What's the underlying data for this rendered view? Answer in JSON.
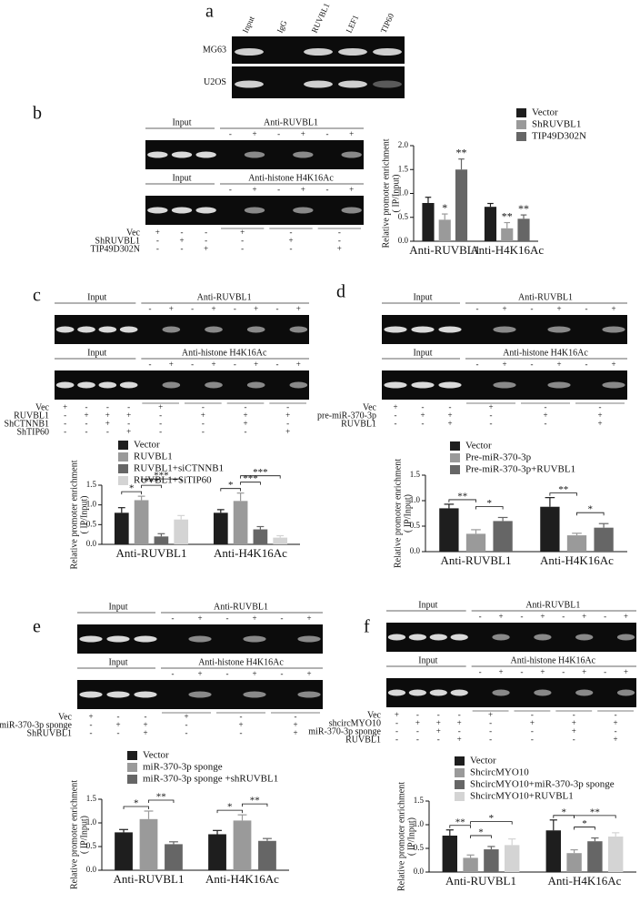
{
  "panels": [
    {
      "label": "a",
      "lanes": [
        "Input",
        "IgG",
        "RUVBL1",
        "LEF1",
        "TIP60"
      ],
      "rows": [
        "MG63",
        "U2OS"
      ]
    },
    {
      "label": "b",
      "gels": [
        {
          "input": "Input",
          "ip": "Anti-RUVBL1",
          "signs": [
            "-",
            "+",
            "-",
            "+",
            "-",
            "+"
          ]
        },
        {
          "input": "Input",
          "ip": "Anti-histone H4K16Ac",
          "signs": [
            "-",
            "+",
            "-",
            "+",
            "-",
            "+"
          ]
        }
      ],
      "conditions": [
        {
          "name": "Vec",
          "marks": [
            "+",
            "-",
            "-",
            "+",
            "-",
            "-"
          ]
        },
        {
          "name": "ShRUVBL1",
          "marks": [
            "-",
            "+",
            "-",
            "-",
            "+",
            "-"
          ]
        },
        {
          "name": "TIP49D302N",
          "marks": [
            "-",
            "-",
            "+",
            "-",
            "-",
            "+"
          ]
        }
      ]
    },
    {
      "label": "c",
      "gels": [
        {
          "input": "Input",
          "ip": "Anti-RUVBL1",
          "signs": [
            "-",
            "+",
            "-",
            "+",
            "-",
            "+",
            "-",
            "+"
          ]
        },
        {
          "input": "Input",
          "ip": "Anti-histone H4K16Ac",
          "signs": [
            "-",
            "+",
            "-",
            "+",
            "-",
            "+",
            "-",
            "+"
          ]
        }
      ],
      "conditions": [
        {
          "name": "Vec",
          "marks": [
            "+",
            "-",
            "-",
            "-",
            "+",
            "-",
            "-",
            "-"
          ]
        },
        {
          "name": "RUVBL1",
          "marks": [
            "-",
            "+",
            "+",
            "+",
            "-",
            "+",
            "+",
            "+"
          ]
        },
        {
          "name": "ShCTNNB1",
          "marks": [
            "-",
            "-",
            "+",
            "-",
            "-",
            "-",
            "+",
            "-"
          ]
        },
        {
          "name": "ShTIP60",
          "marks": [
            "-",
            "-",
            "-",
            "+",
            "-",
            "-",
            "-",
            "+"
          ]
        }
      ]
    },
    {
      "label": "d",
      "gels": [
        {
          "input": "Input",
          "ip": "Anti-RUVBL1",
          "signs": [
            "-",
            "+",
            "-",
            "+",
            "-",
            "+"
          ]
        },
        {
          "input": "Input",
          "ip": "Anti-histone H4K16Ac",
          "signs": [
            "-",
            "+",
            "-",
            "+",
            "-",
            "+"
          ]
        }
      ],
      "conditions": [
        {
          "name": "Vec",
          "marks": [
            "+",
            "-",
            "-",
            "+",
            "-",
            "-"
          ]
        },
        {
          "name": "pre-miR-370-3p",
          "marks": [
            "-",
            "+",
            "+",
            "-",
            "+",
            "+"
          ]
        },
        {
          "name": "RUVBL1",
          "marks": [
            "-",
            "-",
            "+",
            "-",
            "-",
            "+"
          ]
        }
      ]
    },
    {
      "label": "e",
      "gels": [
        {
          "input": "Input",
          "ip": "Anti-RUVBL1",
          "signs": [
            "-",
            "+",
            "-",
            "+",
            "-",
            "+"
          ]
        },
        {
          "input": "Input",
          "ip": "Anti-histone H4K16Ac",
          "signs": [
            "-",
            "+",
            "-",
            "+",
            "-",
            "+"
          ]
        }
      ],
      "conditions": [
        {
          "name": "Vec",
          "marks": [
            "+",
            "-",
            "-",
            "+",
            "-",
            "-"
          ]
        },
        {
          "name": "miR-370-3p sponge",
          "marks": [
            "-",
            "+",
            "+",
            "-",
            "+",
            "+"
          ]
        },
        {
          "name": "ShRUVBL1",
          "marks": [
            "-",
            "-",
            "+",
            "-",
            "-",
            "+"
          ]
        }
      ]
    },
    {
      "label": "f",
      "gels": [
        {
          "input": "Input",
          "ip": "Anti-RUVBL1",
          "signs": [
            "-",
            "+",
            "-",
            "+",
            "-",
            "+",
            "-",
            "+"
          ]
        },
        {
          "input": "Input",
          "ip": "Anti-histone H4K16Ac",
          "signs": [
            "-",
            "+",
            "-",
            "+",
            "-",
            "+",
            "-",
            "+"
          ]
        }
      ],
      "conditions": [
        {
          "name": "Vec",
          "marks": [
            "+",
            "-",
            "-",
            "-",
            "+",
            "-",
            "-",
            "-"
          ]
        },
        {
          "name": "shcircMYO10",
          "marks": [
            "-",
            "+",
            "+",
            "+",
            "-",
            "+",
            "+",
            "+"
          ]
        },
        {
          "name": "miR-370-3p sponge",
          "marks": [
            "-",
            "-",
            "+",
            "-",
            "-",
            "-",
            "+",
            "-"
          ]
        },
        {
          "name": "RUVBL1",
          "marks": [
            "-",
            "-",
            "-",
            "+",
            "-",
            "-",
            "-",
            "+"
          ]
        }
      ]
    }
  ],
  "chart_data": [
    {
      "type": "bar",
      "ylabel": [
        "Relative promoter enrichment",
        "( IP/Input)"
      ],
      "categories": [
        "Anti-RUVBL1",
        "Anti-H4K16Ac"
      ],
      "series": [
        {
          "name": "Vector",
          "color": "#1e1e1e",
          "values": [
            0.8,
            0.72
          ],
          "errors": [
            0.12,
            0.07
          ]
        },
        {
          "name": "ShRUVBL1",
          "color": "#9a9a9a",
          "values": [
            0.45,
            0.27
          ],
          "errors": [
            0.12,
            0.12
          ]
        },
        {
          "name": "TIP49D302N",
          "color": "#666666",
          "values": [
            1.5,
            0.47
          ],
          "errors": [
            0.22,
            0.08
          ]
        }
      ],
      "ylim": [
        0,
        2
      ],
      "yticks": [
        {
          "value": 0,
          "label": "0.0"
        },
        {
          "value": 0.5,
          "label": "0.5"
        },
        {
          "value": 1,
          "label": "1.0"
        },
        {
          "value": 1.5,
          "label": "1.5"
        },
        {
          "value": 2,
          "label": "2.0"
        }
      ],
      "annotations": [
        {
          "text": "*",
          "category": 0,
          "series": [
            1
          ]
        },
        {
          "text": "**",
          "category": 0,
          "series": [
            2
          ]
        },
        {
          "text": "**",
          "category": 1,
          "series": [
            1
          ]
        },
        {
          "text": "**",
          "category": 1,
          "series": [
            2
          ]
        }
      ]
    },
    {
      "type": "bar",
      "ylabel": [
        "Relative promoter enrichment",
        "( IP/Input)"
      ],
      "categories": [
        "Anti-RUVBL1",
        "Anti-H4K16Ac"
      ],
      "series": [
        {
          "name": "Vector",
          "color": "#1e1e1e",
          "values": [
            0.8,
            0.8
          ],
          "errors": [
            0.13,
            0.08
          ]
        },
        {
          "name": "RUVBL1",
          "color": "#9a9a9a",
          "values": [
            1.12,
            1.1
          ],
          "errors": [
            0.1,
            0.2
          ]
        },
        {
          "name": "RUVBL1+siCTNNB1",
          "color": "#666666",
          "values": [
            0.2,
            0.38
          ],
          "errors": [
            0.07,
            0.07
          ]
        },
        {
          "name": "RUVBL1+SiTIP60",
          "color": "#d4d4d4",
          "values": [
            0.63,
            0.17
          ],
          "errors": [
            0.1,
            0.05
          ]
        }
      ],
      "ylim": [
        0,
        1.5
      ],
      "yticks": [
        {
          "value": 0,
          "label": "0.0"
        },
        {
          "value": 0.5,
          "label": "0.5"
        },
        {
          "value": 1,
          "label": "1.0"
        },
        {
          "value": 1.5,
          "label": "1.5"
        }
      ],
      "annotations": [
        {
          "text": "*",
          "category": 0,
          "series": [
            0,
            1
          ]
        },
        {
          "text": "***",
          "category": 0,
          "series": [
            1,
            2
          ]
        },
        {
          "text": "***",
          "category": 0,
          "series": [
            1,
            3
          ]
        },
        {
          "text": "*",
          "category": 1,
          "series": [
            0,
            1
          ]
        },
        {
          "text": "***",
          "category": 1,
          "series": [
            1,
            2
          ]
        },
        {
          "text": "***",
          "category": 1,
          "series": [
            1,
            3
          ]
        }
      ]
    },
    {
      "type": "bar",
      "ylabel": [
        "Relative promoter enrichment",
        "( IP/Input)"
      ],
      "categories": [
        "Anti-RUVBL1",
        "Anti-H4K16Ac"
      ],
      "series": [
        {
          "name": "Vector",
          "color": "#1e1e1e",
          "values": [
            0.85,
            0.88
          ],
          "errors": [
            0.08,
            0.18
          ]
        },
        {
          "name": "Pre-miR-370-3p",
          "color": "#9a9a9a",
          "values": [
            0.35,
            0.32
          ],
          "errors": [
            0.08,
            0.04
          ]
        },
        {
          "name": "Pre-miR-370-3p+RUVBL1",
          "color": "#666666",
          "values": [
            0.6,
            0.47
          ],
          "errors": [
            0.07,
            0.08
          ]
        }
      ],
      "ylim": [
        0,
        1.5
      ],
      "yticks": [
        {
          "value": 0,
          "label": "0.0"
        },
        {
          "value": 0.5,
          "label": "0.5"
        },
        {
          "value": 1,
          "label": "1.0"
        },
        {
          "value": 1.5,
          "label": "1.5"
        }
      ],
      "annotations": [
        {
          "text": "**",
          "category": 0,
          "series": [
            0,
            1
          ]
        },
        {
          "text": "*",
          "category": 0,
          "series": [
            1,
            2
          ]
        },
        {
          "text": "**",
          "category": 1,
          "series": [
            0,
            1
          ]
        },
        {
          "text": "*",
          "category": 1,
          "series": [
            1,
            2
          ]
        }
      ]
    },
    {
      "type": "bar",
      "ylabel": [
        "Relative promoter enrichment",
        "( IP/Input)"
      ],
      "categories": [
        "Anti-RUVBL1",
        "Anti-H4K16Ac"
      ],
      "series": [
        {
          "name": "Vector",
          "color": "#1e1e1e",
          "values": [
            0.8,
            0.76
          ],
          "errors": [
            0.06,
            0.08
          ]
        },
        {
          "name": "miR-370-3p sponge",
          "color": "#9a9a9a",
          "values": [
            1.08,
            1.05
          ],
          "errors": [
            0.17,
            0.12
          ]
        },
        {
          "name": "miR-370-3p sponge +shRUVBL1",
          "color": "#666666",
          "values": [
            0.55,
            0.62
          ],
          "errors": [
            0.05,
            0.05
          ]
        }
      ],
      "ylim": [
        0,
        1.5
      ],
      "yticks": [
        {
          "value": 0,
          "label": "0.0"
        },
        {
          "value": 0.5,
          "label": "0.5"
        },
        {
          "value": 1,
          "label": "1.0"
        },
        {
          "value": 1.5,
          "label": "1.5"
        }
      ],
      "annotations": [
        {
          "text": "*",
          "category": 0,
          "series": [
            0,
            1
          ]
        },
        {
          "text": "**",
          "category": 0,
          "series": [
            1,
            2
          ]
        },
        {
          "text": "*",
          "category": 1,
          "series": [
            0,
            1
          ]
        },
        {
          "text": "**",
          "category": 1,
          "series": [
            1,
            2
          ]
        }
      ]
    },
    {
      "type": "bar",
      "ylabel": [
        "Relative promoter enrichment",
        "( IP/Input)"
      ],
      "categories": [
        "Anti-RUVBL1",
        "Anti-H4K16Ac"
      ],
      "series": [
        {
          "name": "Vector",
          "color": "#1e1e1e",
          "values": [
            0.77,
            0.88
          ],
          "errors": [
            0.12,
            0.22
          ]
        },
        {
          "name": "ShcircMYO10",
          "color": "#9a9a9a",
          "values": [
            0.3,
            0.4
          ],
          "errors": [
            0.06,
            0.07
          ]
        },
        {
          "name": "ShcircMYO10+miR-370-3p sponge",
          "color": "#666666",
          "values": [
            0.48,
            0.65
          ],
          "errors": [
            0.06,
            0.07
          ]
        },
        {
          "name": "ShcircMYO10+RUVBL1",
          "color": "#d4d4d4",
          "values": [
            0.57,
            0.75
          ],
          "errors": [
            0.13,
            0.08
          ]
        }
      ],
      "ylim": [
        0,
        1.5
      ],
      "yticks": [
        {
          "value": 0,
          "label": "0.0"
        },
        {
          "value": 0.5,
          "label": "0.5"
        },
        {
          "value": 1,
          "label": "1.0"
        },
        {
          "value": 1.5,
          "label": "1.5"
        }
      ],
      "annotations": [
        {
          "text": "**",
          "category": 0,
          "series": [
            0,
            1
          ]
        },
        {
          "text": "*",
          "category": 0,
          "series": [
            1,
            2
          ]
        },
        {
          "text": "*",
          "category": 0,
          "series": [
            1,
            3
          ]
        },
        {
          "text": "*",
          "category": 1,
          "series": [
            0,
            1
          ]
        },
        {
          "text": "*",
          "category": 1,
          "series": [
            1,
            2
          ]
        },
        {
          "text": "**",
          "category": 1,
          "series": [
            1,
            3
          ]
        }
      ]
    }
  ]
}
